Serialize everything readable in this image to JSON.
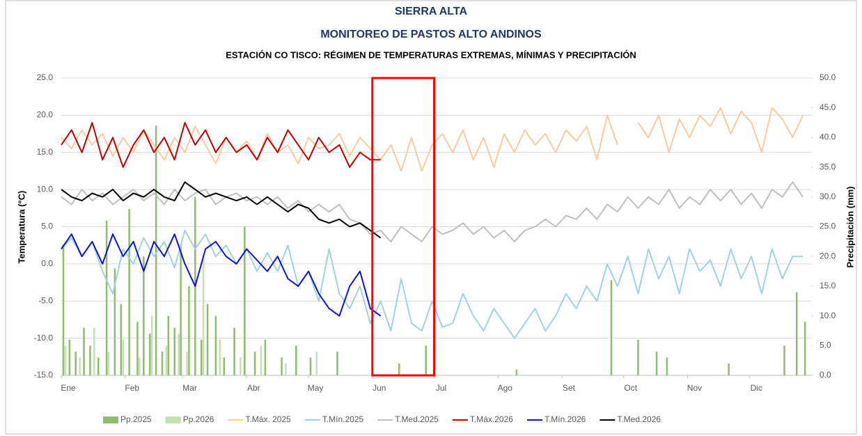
{
  "chart_data": {
    "type": "combo",
    "title": "SIERRA ALTA",
    "title2": "MONITOREO DE PASTOS ALTO ANDINOS",
    "subtitle": "ESTACIÓN CO TISCO: RÉGIMEN DE TEMPERATURAS EXTREMAS, MÍNIMAS Y PRECIPITACIÓN",
    "y_label": "Temperatura (°C)",
    "y2_label": "Precipitación (mm)",
    "xlim": [
      1,
      365
    ],
    "xticks": [
      {
        "value": 1,
        "label": "Ene"
      },
      {
        "value": 32,
        "label": "Feb"
      },
      {
        "value": 60,
        "label": "Mar"
      },
      {
        "value": 91,
        "label": "Abr"
      },
      {
        "value": 121,
        "label": "May"
      },
      {
        "value": 152,
        "label": "Jun"
      },
      {
        "value": 182,
        "label": "Jul"
      },
      {
        "value": 213,
        "label": "Ago"
      },
      {
        "value": 244,
        "label": "Set"
      },
      {
        "value": 274,
        "label": "Oct"
      },
      {
        "value": 305,
        "label": "Nov"
      },
      {
        "value": 335,
        "label": "Dic"
      }
    ],
    "ylim": [
      -15,
      25
    ],
    "yticks": [
      {
        "value": -15,
        "label": "-15.0"
      },
      {
        "value": -10,
        "label": "-10.0"
      },
      {
        "value": -5,
        "label": "-5.0"
      },
      {
        "value": 0,
        "label": "0.0"
      },
      {
        "value": 5,
        "label": "5.0"
      },
      {
        "value": 10,
        "label": "10.0"
      },
      {
        "value": 15,
        "label": "15.0"
      },
      {
        "value": 20,
        "label": "20.0"
      },
      {
        "value": 25,
        "label": "25.0"
      }
    ],
    "y2lim": [
      0,
      50
    ],
    "y2ticks": [
      {
        "value": 0,
        "label": "0.0"
      },
      {
        "value": 5,
        "label": "5.0"
      },
      {
        "value": 10,
        "label": "10.0"
      },
      {
        "value": 15,
        "label": "15.0"
      },
      {
        "value": 20,
        "label": "20.0"
      },
      {
        "value": 25,
        "label": "25.0"
      },
      {
        "value": 30,
        "label": "30.0"
      },
      {
        "value": 35,
        "label": "35.0"
      },
      {
        "value": 40,
        "label": "40.0"
      },
      {
        "value": 45,
        "label": "45.0"
      },
      {
        "value": 50,
        "label": "50.0"
      }
    ],
    "grid": true,
    "legend": "bottom",
    "series": [
      {
        "name": "Pp.2025",
        "type": "bar",
        "axis": "y2",
        "color": "#8fbc6f",
        "x": [
          2,
          5,
          8,
          12,
          15,
          19,
          23,
          27,
          30,
          34,
          38,
          41,
          44,
          47,
          50,
          53,
          56,
          59,
          63,
          66,
          69,
          72,
          76,
          80,
          85,
          90,
          95,
          100,
          108,
          115,
          122,
          135,
          165,
          178,
          222,
          268,
          281,
          290,
          295,
          325,
          352,
          358,
          362
        ],
        "values": [
          22,
          6,
          4,
          8,
          5,
          3,
          26,
          18,
          12,
          28,
          9,
          20,
          7,
          42,
          4,
          10,
          8,
          22,
          15,
          30,
          6,
          12,
          10,
          3,
          8,
          25,
          4,
          6,
          3,
          5,
          3,
          4,
          2,
          5,
          1,
          16,
          6,
          4,
          3,
          2,
          5,
          14,
          9
        ]
      },
      {
        "name": "Pp.2026",
        "type": "bar",
        "axis": "y2",
        "color": "#c6e0b4",
        "x": [
          3,
          10,
          17,
          24,
          31,
          39,
          45,
          52,
          58,
          62,
          70,
          78,
          88,
          98,
          110,
          125
        ],
        "values": [
          5,
          3,
          8,
          4,
          6,
          3,
          10,
          5,
          7,
          4,
          20,
          6,
          3,
          5,
          2,
          4
        ]
      },
      {
        "name": "T.Máx. 2025",
        "type": "line",
        "color": "#f8cba0",
        "x": [
          1,
          6,
          11,
          16,
          21,
          26,
          31,
          36,
          41,
          46,
          51,
          56,
          61,
          66,
          71,
          76,
          81,
          86,
          91,
          96,
          101,
          106,
          111,
          116,
          121,
          126,
          131,
          136,
          141,
          146,
          151,
          156,
          161,
          166,
          171,
          176,
          181,
          186,
          191,
          196,
          201,
          206,
          211,
          216,
          221,
          226,
          231,
          236,
          241,
          246,
          251,
          256,
          261,
          266,
          271,
          276,
          281,
          286,
          291,
          296,
          301,
          306,
          311,
          316,
          321,
          326,
          331,
          336,
          341,
          346,
          351,
          356,
          361
        ],
        "values": [
          17,
          15.5,
          18,
          16,
          17.5,
          14.5,
          17,
          15,
          18,
          16,
          14,
          17,
          15,
          18.5,
          16,
          13.5,
          17,
          15,
          16.5,
          14,
          17.5,
          15,
          16,
          13.5,
          17,
          15.5,
          16,
          17.5,
          14.5,
          17,
          15.5,
          14,
          16,
          12.5,
          17,
          12.5,
          16,
          17.5,
          15,
          18,
          14,
          17,
          13,
          17.5,
          15,
          18,
          16,
          17.5,
          15,
          18,
          16.5,
          18.5,
          14,
          20,
          16,
          null,
          19,
          17,
          20,
          15,
          19.5,
          17,
          20,
          18.5,
          21,
          17.5,
          20.5,
          19,
          15,
          21,
          19.5,
          17,
          20
        ]
      },
      {
        "name": "T.Mín.2025",
        "type": "line",
        "color": "#9fd3e0",
        "x": [
          1,
          6,
          11,
          16,
          21,
          26,
          31,
          36,
          41,
          46,
          51,
          56,
          61,
          66,
          71,
          76,
          81,
          86,
          91,
          96,
          101,
          106,
          111,
          116,
          121,
          126,
          131,
          136,
          141,
          146,
          151,
          156,
          161,
          166,
          171,
          176,
          181,
          186,
          191,
          196,
          201,
          206,
          211,
          216,
          221,
          226,
          231,
          236,
          241,
          246,
          251,
          256,
          261,
          266,
          271,
          276,
          281,
          286,
          291,
          296,
          301,
          306,
          311,
          316,
          321,
          326,
          331,
          336,
          341,
          346,
          351,
          356,
          361
        ],
        "values": [
          2,
          3.5,
          1,
          3,
          -1,
          -4,
          2,
          0,
          3.5,
          1,
          3,
          -0.5,
          4.5,
          2,
          4,
          1,
          2.5,
          0,
          2,
          -1,
          1.5,
          -1,
          2.5,
          -3,
          -1,
          -5,
          2,
          -4,
          -6,
          -3,
          -8,
          -5,
          -9,
          -2,
          -8,
          -9,
          -5,
          -8.5,
          -8,
          -4,
          -7,
          -9,
          -6,
          -8,
          -10,
          -8,
          -6,
          -9,
          -7,
          -4,
          -6,
          -3,
          -5,
          0,
          -3,
          1,
          -4,
          2,
          -2,
          1,
          -4,
          2,
          -1,
          0.5,
          -3,
          2,
          -2,
          1,
          -4,
          2,
          -2,
          1,
          1
        ]
      },
      {
        "name": "T.Med.2025",
        "type": "line",
        "color": "#bfbfbf",
        "x": [
          1,
          6,
          11,
          16,
          21,
          26,
          31,
          36,
          41,
          46,
          51,
          56,
          61,
          66,
          71,
          76,
          81,
          86,
          91,
          96,
          101,
          106,
          111,
          116,
          121,
          126,
          131,
          136,
          141,
          146,
          151,
          156,
          161,
          166,
          171,
          176,
          181,
          186,
          191,
          196,
          201,
          206,
          211,
          216,
          221,
          226,
          231,
          236,
          241,
          246,
          251,
          256,
          261,
          266,
          271,
          276,
          281,
          286,
          291,
          296,
          301,
          306,
          311,
          316,
          321,
          326,
          331,
          336,
          341,
          346,
          351,
          356,
          361
        ],
        "values": [
          9,
          8,
          10,
          8.5,
          9.5,
          8,
          9,
          10,
          8.5,
          9.5,
          8,
          10,
          8.5,
          9.5,
          10,
          8,
          9,
          9.5,
          8.5,
          9,
          8,
          9,
          7.5,
          8.5,
          7,
          8,
          7,
          8,
          6,
          5.5,
          4,
          4.5,
          3,
          5,
          4,
          3,
          5,
          4,
          4.5,
          5.5,
          4,
          5,
          3.5,
          4.5,
          3,
          4.5,
          5,
          6,
          5,
          6.5,
          6,
          7.5,
          6,
          8,
          7,
          9,
          7.5,
          9,
          8,
          10,
          7.5,
          9,
          8,
          10,
          8.5,
          10,
          8,
          9.5,
          7.5,
          10,
          9,
          11,
          9
        ]
      },
      {
        "name": "T.Máx.2026",
        "type": "line",
        "color": "#c00000",
        "x": [
          1,
          6,
          11,
          16,
          21,
          26,
          31,
          36,
          41,
          46,
          51,
          56,
          61,
          66,
          71,
          76,
          81,
          86,
          91,
          96,
          101,
          106,
          111,
          116,
          121,
          126,
          131,
          136,
          141,
          146,
          151,
          156
        ],
        "values": [
          16,
          18,
          15,
          19,
          14,
          17,
          13,
          16,
          18,
          15,
          17,
          14,
          19,
          16,
          18,
          15,
          17,
          15,
          16,
          14,
          17,
          15,
          18,
          16,
          14,
          17,
          15,
          16,
          13,
          15,
          14,
          14
        ]
      },
      {
        "name": "T.Mín.2026",
        "type": "line",
        "color": "#0a14d8",
        "x": [
          1,
          6,
          11,
          16,
          21,
          26,
          31,
          36,
          41,
          46,
          51,
          56,
          61,
          66,
          71,
          76,
          81,
          86,
          91,
          96,
          101,
          106,
          111,
          116,
          121,
          126,
          131,
          136,
          141,
          146,
          151,
          156
        ],
        "values": [
          2,
          4,
          1,
          3,
          0,
          4,
          1,
          3,
          -1,
          3,
          1,
          4,
          0,
          -3,
          2,
          3,
          1,
          0,
          2,
          0.5,
          -1,
          1,
          -2,
          -3,
          -1,
          -4,
          -6,
          -7,
          -3,
          -1,
          -6,
          -7
        ]
      },
      {
        "name": "T.Med.2026",
        "type": "line",
        "color": "#000000",
        "x": [
          1,
          6,
          11,
          16,
          21,
          26,
          31,
          36,
          41,
          46,
          51,
          56,
          61,
          66,
          71,
          76,
          81,
          86,
          91,
          96,
          101,
          106,
          111,
          116,
          121,
          126,
          131,
          136,
          141,
          146,
          151,
          156
        ],
        "values": [
          10,
          9,
          8.5,
          9.5,
          9,
          10,
          8.5,
          9.5,
          9,
          10,
          9,
          8.5,
          11,
          10,
          9,
          9.5,
          9,
          8.5,
          9,
          8,
          9,
          8,
          7,
          8,
          7.5,
          6,
          5.5,
          6,
          5,
          5.5,
          4.5,
          3.5
        ]
      }
    ]
  }
}
